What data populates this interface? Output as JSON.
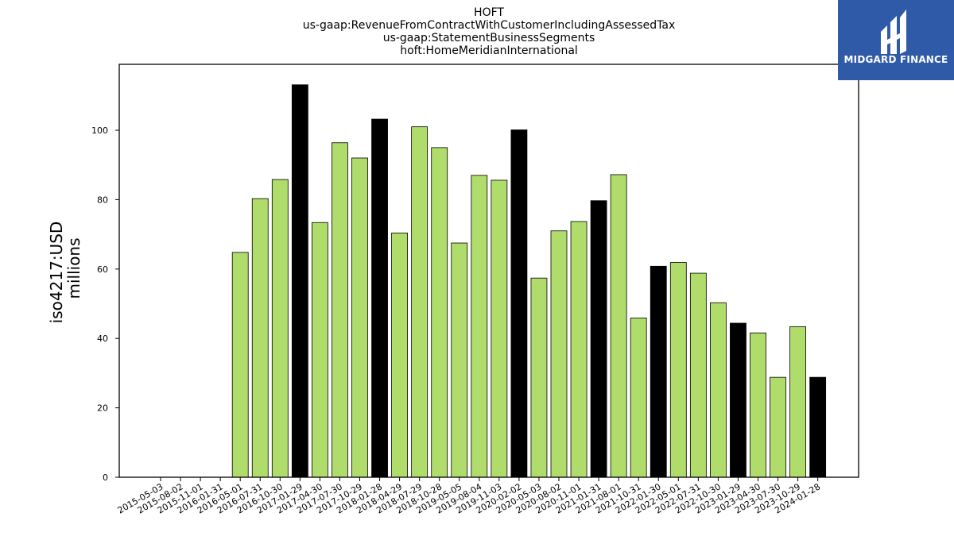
{
  "header": {
    "title_lines": [
      "HOFT",
      "us-gaap:RevenueFromContractWithCustomerIncludingAssessedTax",
      "us-gaap:StatementBusinessSegments",
      "hoft:HomeMeridianInternational"
    ]
  },
  "logo": {
    "text": "MIDGARD FINANCE",
    "background": "#2f5aa8"
  },
  "chart_data": {
    "type": "bar",
    "ylabel_lines": [
      "iso4217:USD",
      "millions"
    ],
    "xlabel": "",
    "ylim": [
      0,
      119
    ],
    "yticks": [
      0,
      20,
      40,
      60,
      80,
      100
    ],
    "grid": false,
    "colors": {
      "quarter": "#b0dc6b",
      "fiscal_year_end": "#000000",
      "edge": "#000000"
    },
    "categories": [
      "2015-05-03",
      "2015-08-02",
      "2015-11-01",
      "2016-01-31",
      "2016-05-01",
      "2016-07-31",
      "2016-10-30",
      "2017-01-29",
      "2017-04-30",
      "2017-07-30",
      "2017-10-29",
      "2018-01-28",
      "2018-04-29",
      "2018-07-29",
      "2018-10-28",
      "2019-05-05",
      "2019-08-04",
      "2019-11-03",
      "2020-02-02",
      "2020-05-03",
      "2020-08-02",
      "2020-11-01",
      "2021-01-31",
      "2021-08-01",
      "2021-10-31",
      "2022-01-30",
      "2022-05-01",
      "2022-07-31",
      "2022-10-30",
      "2023-01-29",
      "2023-04-30",
      "2023-07-30",
      "2023-10-29",
      "2024-01-28"
    ],
    "values": [
      null,
      null,
      null,
      null,
      64.8,
      80.3,
      85.8,
      113.1,
      73.4,
      96.4,
      92.0,
      103.2,
      70.4,
      101.0,
      95.0,
      67.5,
      87.0,
      85.6,
      100.1,
      57.4,
      71.0,
      73.7,
      79.7,
      87.2,
      45.9,
      60.8,
      61.9,
      58.8,
      50.3,
      44.4,
      41.6,
      28.8,
      43.4,
      28.8
    ],
    "highlight": [
      false,
      false,
      false,
      false,
      false,
      false,
      false,
      true,
      false,
      false,
      false,
      true,
      false,
      false,
      false,
      false,
      false,
      false,
      true,
      false,
      false,
      false,
      true,
      false,
      false,
      true,
      false,
      false,
      false,
      true,
      false,
      false,
      false,
      true
    ]
  }
}
